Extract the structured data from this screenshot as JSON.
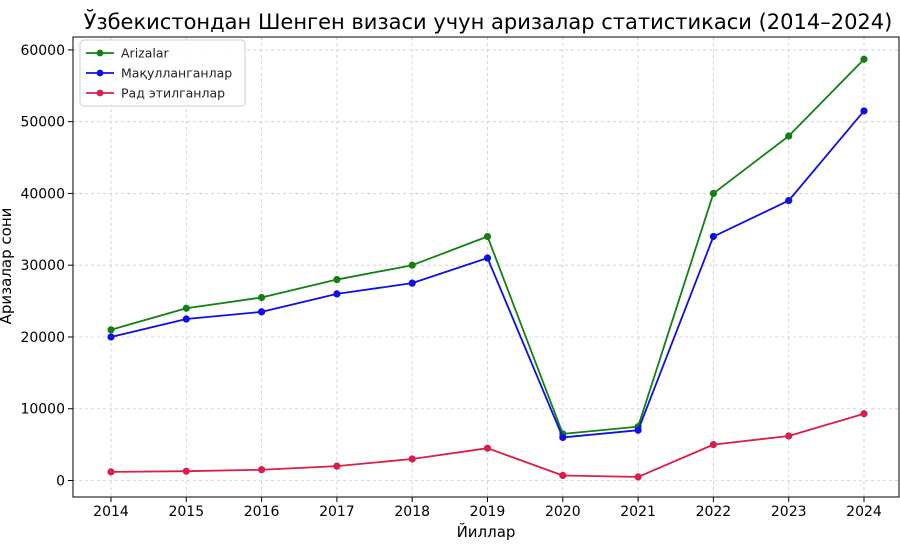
{
  "chart_data": {
    "type": "line",
    "title": "Ўзбекистондан Шенген визаси учун аризалар статистикаси (2014–2024)",
    "xlabel": "Йиллар",
    "ylabel": "Аризалар сони",
    "x": [
      "2014",
      "2015",
      "2016",
      "2017",
      "2018",
      "2019",
      "2020",
      "2021",
      "2022",
      "2023",
      "2024"
    ],
    "ylim": [
      -2300,
      61800
    ],
    "yticks": [
      0,
      10000,
      20000,
      30000,
      40000,
      50000,
      60000
    ],
    "ytick_labels": [
      "0",
      "10000",
      "20000",
      "30000",
      "40000",
      "50000",
      "60000"
    ],
    "grid": true,
    "legend_position": "top-left",
    "series": [
      {
        "name": "Arizalar",
        "color": "#138013",
        "values": [
          21000,
          24000,
          25500,
          28000,
          30000,
          34000,
          6500,
          7500,
          40000,
          48000,
          58700
        ]
      },
      {
        "name": "Мақулланганлар",
        "color": "#1010e0",
        "values": [
          20000,
          22500,
          23500,
          26000,
          27500,
          31000,
          6000,
          7000,
          34000,
          39000,
          51500
        ]
      },
      {
        "name": "Рад этилганлар",
        "color": "#d81e4a",
        "values": [
          1200,
          1300,
          1500,
          2000,
          3000,
          4500,
          700,
          500,
          5000,
          6200,
          9300
        ]
      }
    ]
  }
}
